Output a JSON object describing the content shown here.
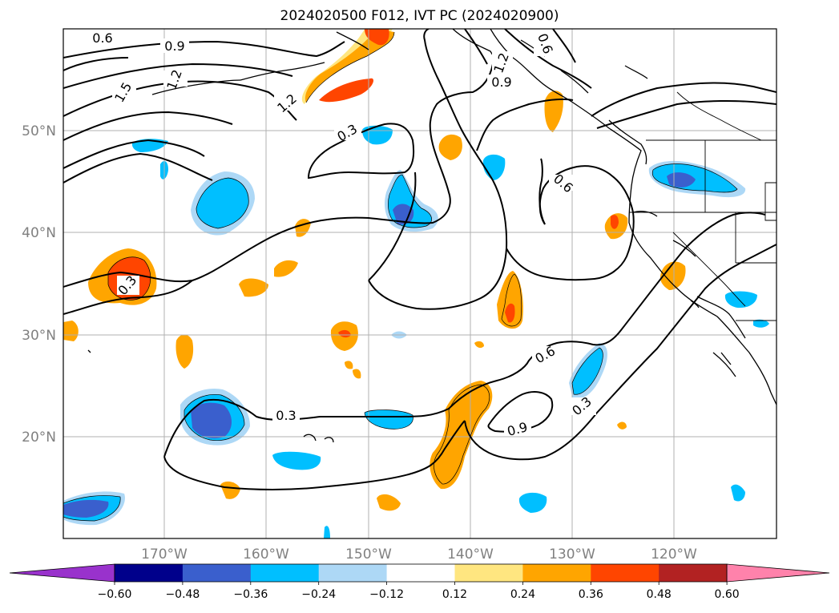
{
  "title": "2024020500 F012, IVT PC (2024020900)",
  "lat_labels": [
    "50°N",
    "40°N",
    "30°N",
    "20°N"
  ],
  "lon_labels": [
    "170°W",
    "160°W",
    "150°W",
    "140°W",
    "130°W",
    "120°W"
  ],
  "contour_labels": [
    "0.6",
    "0.9",
    "1.2",
    "1.5",
    "1.2",
    "0.3",
    "0.6",
    "0.9",
    "1.2",
    "0.6",
    "0.3",
    "0.3",
    "0.6",
    "0.9",
    "0.3"
  ],
  "colorbar": {
    "ticks": [
      "−0.60",
      "−0.48",
      "−0.36",
      "−0.24",
      "−0.12",
      "0.12",
      "0.24",
      "0.36",
      "0.48",
      "0.60"
    ],
    "colors": [
      "#9932cc",
      "#00008b",
      "#3a5fcd",
      "#00bfff",
      "#add8f6",
      "#ffffff",
      "#ffe680",
      "#ffa500",
      "#ff4500",
      "#b22222",
      "#ff82ab"
    ]
  }
}
